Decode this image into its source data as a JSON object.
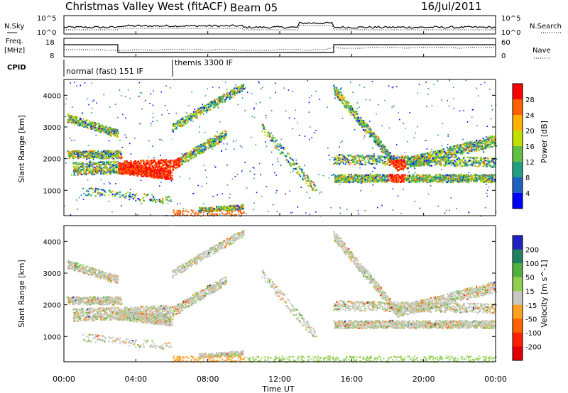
{
  "header": {
    "title": "Christmas Valley West (fitACF)",
    "beam": "Beam 05",
    "date": "16/Jul/2011"
  },
  "colors": {
    "power": [
      "#0000ff",
      "#2060c0",
      "#20a080",
      "#60c040",
      "#c0e000",
      "#ffb000",
      "#ff6000",
      "#ff0000"
    ],
    "velocity": [
      "#2020c0",
      "#208060",
      "#50b040",
      "#90d050",
      "#c8c8c0",
      "#ffa020",
      "#ff6000",
      "#ff2000",
      "#e00000"
    ]
  },
  "chart_data": [
    {
      "type": "line",
      "name": "noise-panel",
      "ylabel_left": "N.Sky",
      "ylabel_right": "N.Search",
      "left_ticks": [
        "10^5",
        "10^0"
      ],
      "right_ticks": [
        "10^5",
        "10^0"
      ]
    },
    {
      "type": "line",
      "name": "freq-panel",
      "ylabel_left_line1": "Freq.",
      "ylabel_left_line2": "[MHz]",
      "ylabel_right": "Nave",
      "left_ticks": [
        "18",
        "8"
      ],
      "right_ticks": [
        "60",
        "0"
      ]
    },
    {
      "type": "table",
      "name": "cpid-panel",
      "label": "CPID",
      "segments": [
        {
          "label": "normal (fast) 151 IF",
          "start_hour": 0,
          "end_hour": 6
        },
        {
          "label": "themis 3300 IF",
          "start_hour": 6,
          "end_hour": 24
        }
      ]
    },
    {
      "type": "heatmap",
      "name": "power-panel",
      "ylabel": "Slant Range [km]",
      "y_ticks": [
        "4000",
        "3000",
        "2000",
        "1000"
      ],
      "ylim": [
        200,
        4500
      ],
      "colorbar_label": "Power [dB]",
      "colorbar_ticks": [
        "28",
        "24",
        "20",
        "16",
        "12",
        "8",
        "4"
      ]
    },
    {
      "type": "heatmap",
      "name": "velocity-panel",
      "ylabel": "Slant Range [km]",
      "y_ticks": [
        "4000",
        "3000",
        "2000",
        "1000"
      ],
      "ylim": [
        200,
        4500
      ],
      "colorbar_label": "Velocity [m s^-1]",
      "colorbar_ticks": [
        "200",
        "100",
        "50",
        "15",
        "-15",
        "-50",
        "-100",
        "-200"
      ]
    }
  ],
  "xaxis": {
    "label": "Time UT",
    "ticks": [
      "00:00",
      "04:00",
      "08:00",
      "12:00",
      "16:00",
      "20:00",
      "00:00"
    ]
  }
}
